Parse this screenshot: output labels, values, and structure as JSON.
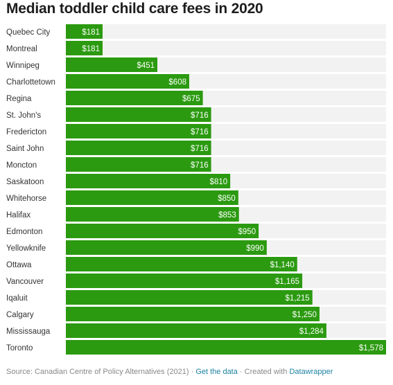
{
  "title": "Median toddler child care fees in 2020",
  "chart_data": {
    "type": "bar",
    "orientation": "horizontal",
    "categories": [
      "Quebec City",
      "Montreal",
      "Winnipeg",
      "Charlottetown",
      "Regina",
      "St. John's",
      "Fredericton",
      "Saint John",
      "Moncton",
      "Saskatoon",
      "Whitehorse",
      "Halifax",
      "Edmonton",
      "Yellowknife",
      "Ottawa",
      "Vancouver",
      "Iqaluit",
      "Calgary",
      "Mississauga",
      "Toronto"
    ],
    "values": [
      181,
      181,
      451,
      608,
      675,
      716,
      716,
      716,
      716,
      810,
      850,
      853,
      950,
      990,
      1140,
      1165,
      1215,
      1250,
      1284,
      1578
    ],
    "labels": [
      "$181",
      "$181",
      "$451",
      "$608",
      "$675",
      "$716",
      "$716",
      "$716",
      "$716",
      "$810",
      "$850",
      "$853",
      "$950",
      "$990",
      "$1,140",
      "$1,165",
      "$1,215",
      "$1,250",
      "$1,284",
      "$1,578"
    ],
    "xlim": [
      0,
      1578
    ],
    "bar_color": "#2b9a10",
    "track_color": "#f2f2f2",
    "grid": false
  },
  "footer": {
    "source": "Source: Canadian Centre of Policy Alternatives (2021) · ",
    "get_data": "Get the data",
    "created": " · Created with ",
    "tool": "Datawrapper"
  }
}
